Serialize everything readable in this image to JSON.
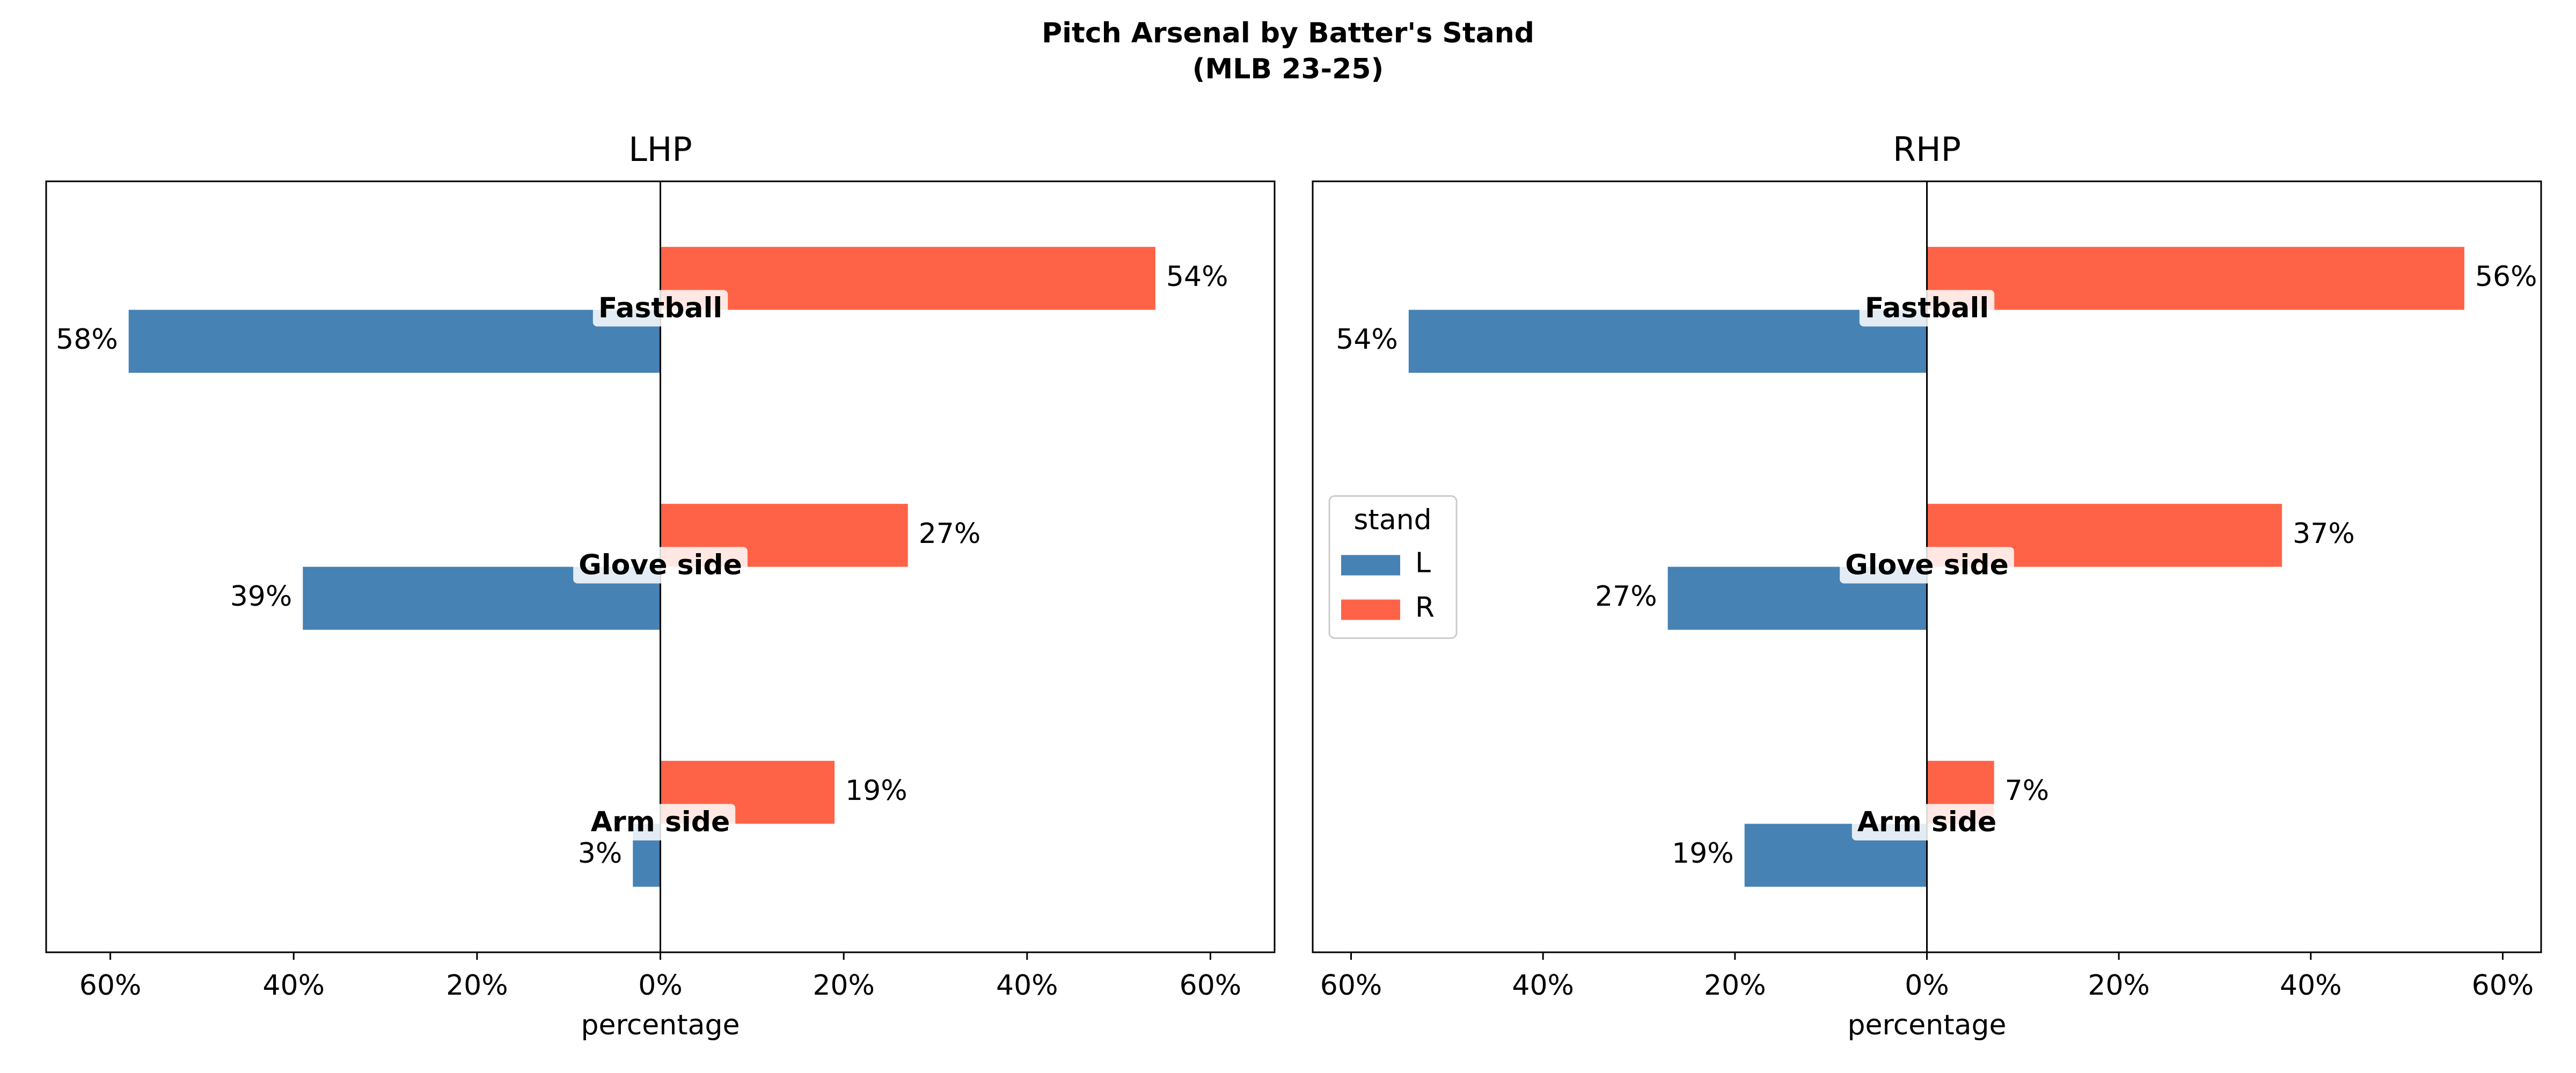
{
  "title": "Pitch Arsenal by Batter's Stand",
  "subtitle": "(MLB 23-25)",
  "chart_data": [
    {
      "type": "bar",
      "orientation": "horizontal",
      "title": "LHP",
      "x_label": "percentage",
      "categories": [
        "Fastball",
        "Glove side",
        "Arm side"
      ],
      "series": [
        {
          "name": "L",
          "color": "#4682b4",
          "values": [
            -58,
            -39,
            -3
          ],
          "value_labels": [
            "58%",
            "39%",
            "3%"
          ]
        },
        {
          "name": "R",
          "color": "#ff6347",
          "values": [
            54,
            27,
            19
          ],
          "value_labels": [
            "54%",
            "27%",
            "19%"
          ]
        }
      ],
      "xlim": [
        -67,
        67
      ],
      "xticks": [
        {
          "value": -60,
          "label": "60%"
        },
        {
          "value": -40,
          "label": "40%"
        },
        {
          "value": -20,
          "label": "20%"
        },
        {
          "value": 0,
          "label": "0%"
        },
        {
          "value": 20,
          "label": "20%"
        },
        {
          "value": 40,
          "label": "40%"
        },
        {
          "value": 60,
          "label": "60%"
        }
      ],
      "legend": false
    },
    {
      "type": "bar",
      "orientation": "horizontal",
      "title": "RHP",
      "x_label": "percentage",
      "categories": [
        "Fastball",
        "Glove side",
        "Arm side"
      ],
      "series": [
        {
          "name": "L",
          "color": "#4682b4",
          "values": [
            -54,
            -27,
            -19
          ],
          "value_labels": [
            "54%",
            "27%",
            "19%"
          ]
        },
        {
          "name": "R",
          "color": "#ff6347",
          "values": [
            56,
            37,
            7
          ],
          "value_labels": [
            "56%",
            "37%",
            "7%"
          ]
        }
      ],
      "xlim": [
        -64,
        64
      ],
      "xticks": [
        {
          "value": -60,
          "label": "60%"
        },
        {
          "value": -40,
          "label": "40%"
        },
        {
          "value": -20,
          "label": "20%"
        },
        {
          "value": 0,
          "label": "0%"
        },
        {
          "value": 20,
          "label": "20%"
        },
        {
          "value": 40,
          "label": "40%"
        },
        {
          "value": 60,
          "label": "60%"
        }
      ],
      "legend": true,
      "legend_title": "stand",
      "legend_position": "center left"
    }
  ]
}
